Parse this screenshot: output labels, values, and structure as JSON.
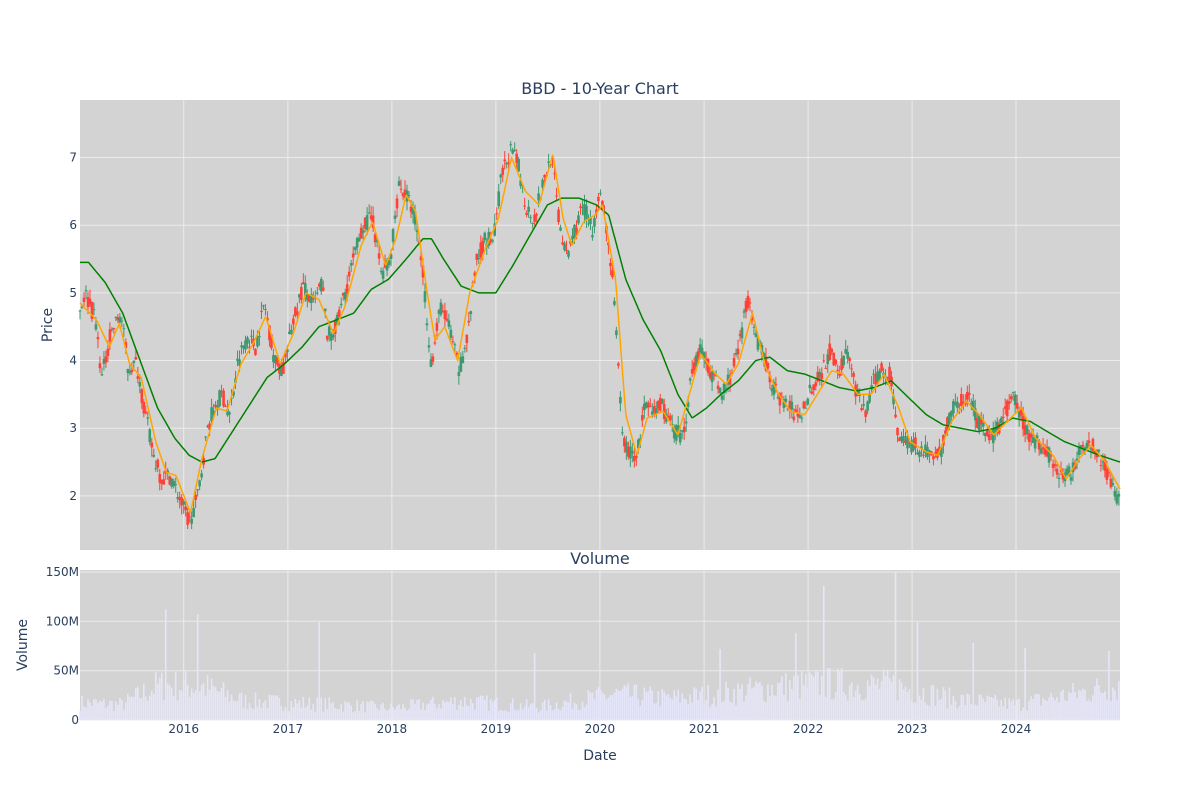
{
  "figure": {
    "background": "#ffffff",
    "plot_background": "#d3d3d3",
    "grid_color": "#ebebeb",
    "text_color": "#2a3f5f",
    "up_color": "#3d9970",
    "down_color": "#ff4136",
    "ma_fast_color": "#ffa500",
    "ma_slow_color": "#008000",
    "volume_color": "#e6e6fa"
  },
  "chart_data": [
    {
      "type": "candlestick",
      "title": "BBD - 10-Year Chart",
      "ylabel": "Price",
      "ylim": [
        1.2,
        7.85
      ],
      "yticks": [
        2,
        3,
        4,
        5,
        6,
        7
      ],
      "ytick_labels": [
        "2",
        "3",
        "4",
        "5",
        "6",
        "7"
      ],
      "xlim": [
        "2015-01-02",
        "2024-12-31"
      ],
      "grid": true,
      "price_anchors": [
        [
          "2015-01-02",
          4.75
        ],
        [
          "2015-01-20",
          5.0
        ],
        [
          "2015-02-25",
          4.6
        ],
        [
          "2015-03-20",
          3.75
        ],
        [
          "2015-04-20",
          4.4
        ],
        [
          "2015-05-25",
          4.7
        ],
        [
          "2015-06-20",
          3.9
        ],
        [
          "2015-07-20",
          3.95
        ],
        [
          "2015-08-15",
          3.3
        ],
        [
          "2015-09-20",
          2.55
        ],
        [
          "2015-10-15",
          2.25
        ],
        [
          "2015-11-15",
          2.3
        ],
        [
          "2015-12-10",
          2.05
        ],
        [
          "2016-01-20",
          1.6
        ],
        [
          "2016-02-20",
          2.0
        ],
        [
          "2016-03-25",
          3.0
        ],
        [
          "2016-04-20",
          3.35
        ],
        [
          "2016-05-15",
          3.5
        ],
        [
          "2016-06-10",
          3.2
        ],
        [
          "2016-07-10",
          4.0
        ],
        [
          "2016-08-10",
          4.35
        ],
        [
          "2016-09-10",
          4.2
        ],
        [
          "2016-10-10",
          4.85
        ],
        [
          "2016-11-15",
          4.0
        ],
        [
          "2016-12-15",
          3.85
        ],
        [
          "2017-01-20",
          4.6
        ],
        [
          "2017-02-25",
          5.1
        ],
        [
          "2017-04-01",
          4.8
        ],
        [
          "2017-05-01",
          5.15
        ],
        [
          "2017-05-20",
          4.35
        ],
        [
          "2017-06-20",
          4.5
        ],
        [
          "2017-07-20",
          5.0
        ],
        [
          "2017-08-20",
          5.5
        ],
        [
          "2017-09-20",
          6.0
        ],
        [
          "2017-10-25",
          6.1
        ],
        [
          "2017-11-25",
          5.3
        ],
        [
          "2017-12-25",
          5.45
        ],
        [
          "2018-01-25",
          6.6
        ],
        [
          "2018-02-25",
          6.4
        ],
        [
          "2018-03-25",
          6.1
        ],
        [
          "2018-04-20",
          5.3
        ],
        [
          "2018-05-20",
          3.9
        ],
        [
          "2018-06-20",
          4.8
        ],
        [
          "2018-07-20",
          4.5
        ],
        [
          "2018-08-25",
          3.85
        ],
        [
          "2018-09-25",
          4.4
        ],
        [
          "2018-10-25",
          5.5
        ],
        [
          "2018-11-25",
          5.8
        ],
        [
          "2018-12-25",
          5.8
        ],
        [
          "2019-01-20",
          6.7
        ],
        [
          "2019-02-20",
          7.1
        ],
        [
          "2019-03-20",
          6.9
        ],
        [
          "2019-04-15",
          6.3
        ],
        [
          "2019-05-15",
          6.1
        ],
        [
          "2019-06-15",
          6.6
        ],
        [
          "2019-07-15",
          7.05
        ],
        [
          "2019-08-10",
          6.1
        ],
        [
          "2019-09-05",
          5.5
        ],
        [
          "2019-10-05",
          5.95
        ],
        [
          "2019-11-05",
          6.3
        ],
        [
          "2019-12-05",
          5.9
        ],
        [
          "2019-12-28",
          6.5
        ],
        [
          "2020-01-20",
          6.1
        ],
        [
          "2020-02-15",
          5.2
        ],
        [
          "2020-03-20",
          2.9
        ],
        [
          "2020-04-10",
          2.65
        ],
        [
          "2020-05-10",
          2.6
        ],
        [
          "2020-06-05",
          3.3
        ],
        [
          "2020-07-05",
          3.2
        ],
        [
          "2020-08-05",
          3.35
        ],
        [
          "2020-09-10",
          3.0
        ],
        [
          "2020-10-20",
          2.85
        ],
        [
          "2020-11-20",
          3.9
        ],
        [
          "2020-12-20",
          4.15
        ],
        [
          "2021-01-25",
          3.85
        ],
        [
          "2021-03-01",
          3.5
        ],
        [
          "2021-04-01",
          3.75
        ],
        [
          "2021-05-01",
          4.1
        ],
        [
          "2021-06-01",
          4.95
        ],
        [
          "2021-07-01",
          4.3
        ],
        [
          "2021-08-01",
          4.05
        ],
        [
          "2021-09-01",
          3.6
        ],
        [
          "2021-10-01",
          3.4
        ],
        [
          "2021-11-01",
          3.3
        ],
        [
          "2021-12-01",
          3.1
        ],
        [
          "2022-01-10",
          3.6
        ],
        [
          "2022-02-10",
          3.75
        ],
        [
          "2022-03-20",
          4.15
        ],
        [
          "2022-04-20",
          3.85
        ],
        [
          "2022-05-20",
          4.15
        ],
        [
          "2022-06-20",
          3.5
        ],
        [
          "2022-07-20",
          3.2
        ],
        [
          "2022-08-20",
          3.7
        ],
        [
          "2022-09-20",
          3.9
        ],
        [
          "2022-10-20",
          3.75
        ],
        [
          "2022-11-10",
          2.95
        ],
        [
          "2022-12-10",
          2.8
        ],
        [
          "2023-01-10",
          2.75
        ],
        [
          "2023-02-10",
          2.65
        ],
        [
          "2023-03-15",
          2.6
        ],
        [
          "2023-04-15",
          2.7
        ],
        [
          "2023-05-15",
          3.2
        ],
        [
          "2023-06-15",
          3.4
        ],
        [
          "2023-07-20",
          3.45
        ],
        [
          "2023-08-20",
          3.1
        ],
        [
          "2023-09-20",
          2.9
        ],
        [
          "2023-10-20",
          2.9
        ],
        [
          "2023-11-20",
          3.2
        ],
        [
          "2023-12-25",
          3.45
        ],
        [
          "2024-01-25",
          3.1
        ],
        [
          "2024-02-20",
          2.85
        ],
        [
          "2024-03-20",
          2.8
        ],
        [
          "2024-04-20",
          2.65
        ],
        [
          "2024-05-20",
          2.45
        ],
        [
          "2024-06-20",
          2.25
        ],
        [
          "2024-07-15",
          2.35
        ],
        [
          "2024-08-15",
          2.8
        ],
        [
          "2024-09-15",
          2.75
        ],
        [
          "2024-10-15",
          2.65
        ],
        [
          "2024-11-15",
          2.35
        ],
        [
          "2024-12-15",
          2.05
        ],
        [
          "2024-12-31",
          1.9
        ]
      ],
      "ma_fast_anchors": [
        [
          "2015-01-02",
          4.85
        ],
        [
          "2015-03-01",
          4.6
        ],
        [
          "2015-04-15",
          4.2
        ],
        [
          "2015-05-20",
          4.55
        ],
        [
          "2015-06-25",
          3.95
        ],
        [
          "2015-08-05",
          3.75
        ],
        [
          "2015-09-25",
          2.8
        ],
        [
          "2015-11-01",
          2.35
        ],
        [
          "2015-12-05",
          2.3
        ],
        [
          "2016-01-25",
          1.75
        ],
        [
          "2016-03-05",
          2.55
        ],
        [
          "2016-04-25",
          3.3
        ],
        [
          "2016-06-01",
          3.25
        ],
        [
          "2016-07-20",
          3.95
        ],
        [
          "2016-09-01",
          4.25
        ],
        [
          "2016-10-15",
          4.65
        ],
        [
          "2016-12-05",
          3.95
        ],
        [
          "2017-01-20",
          4.4
        ],
        [
          "2017-03-05",
          5.0
        ],
        [
          "2017-04-20",
          4.9
        ],
        [
          "2017-06-10",
          4.4
        ],
        [
          "2017-07-20",
          4.8
        ],
        [
          "2017-09-15",
          5.7
        ],
        [
          "2017-10-25",
          6.05
        ],
        [
          "2017-12-10",
          5.4
        ],
        [
          "2018-01-15",
          5.8
        ],
        [
          "2018-02-20",
          6.45
        ],
        [
          "2018-03-25",
          6.2
        ],
        [
          "2018-05-05",
          5.0
        ],
        [
          "2018-06-01",
          4.3
        ],
        [
          "2018-07-05",
          4.5
        ],
        [
          "2018-08-20",
          4.0
        ],
        [
          "2018-10-01",
          5.0
        ],
        [
          "2018-11-25",
          5.65
        ],
        [
          "2019-01-10",
          6.1
        ],
        [
          "2019-02-25",
          7.0
        ],
        [
          "2019-04-15",
          6.5
        ],
        [
          "2019-06-01",
          6.3
        ],
        [
          "2019-07-20",
          7.05
        ],
        [
          "2019-08-25",
          6.1
        ],
        [
          "2019-09-25",
          5.7
        ],
        [
          "2019-11-05",
          6.05
        ],
        [
          "2019-12-15",
          6.15
        ],
        [
          "2020-01-10",
          6.3
        ],
        [
          "2020-02-25",
          5.2
        ],
        [
          "2020-04-01",
          3.2
        ],
        [
          "2020-05-10",
          2.6
        ],
        [
          "2020-06-15",
          3.15
        ],
        [
          "2020-08-10",
          3.25
        ],
        [
          "2020-10-01",
          2.9
        ],
        [
          "2020-11-10",
          3.5
        ],
        [
          "2020-12-20",
          4.1
        ],
        [
          "2021-02-10",
          3.8
        ],
        [
          "2021-03-20",
          3.65
        ],
        [
          "2021-05-01",
          3.95
        ],
        [
          "2021-06-20",
          4.7
        ],
        [
          "2021-08-05",
          3.9
        ],
        [
          "2021-09-20",
          3.5
        ],
        [
          "2021-11-01",
          3.25
        ],
        [
          "2021-12-20",
          3.2
        ],
        [
          "2022-02-10",
          3.55
        ],
        [
          "2022-03-25",
          3.85
        ],
        [
          "2022-05-05",
          3.8
        ],
        [
          "2022-06-25",
          3.5
        ],
        [
          "2022-08-10",
          3.5
        ],
        [
          "2022-09-25",
          3.8
        ],
        [
          "2022-11-15",
          3.3
        ],
        [
          "2022-12-25",
          2.8
        ],
        [
          "2023-02-20",
          2.65
        ],
        [
          "2023-04-01",
          2.6
        ],
        [
          "2023-05-20",
          3.1
        ],
        [
          "2023-07-10",
          3.4
        ],
        [
          "2023-08-25",
          3.2
        ],
        [
          "2023-10-15",
          2.9
        ],
        [
          "2023-12-01",
          3.1
        ],
        [
          "2024-01-20",
          3.3
        ],
        [
          "2024-03-10",
          2.85
        ],
        [
          "2024-05-10",
          2.6
        ],
        [
          "2024-06-25",
          2.25
        ],
        [
          "2024-08-10",
          2.55
        ],
        [
          "2024-09-20",
          2.75
        ],
        [
          "2024-11-10",
          2.5
        ],
        [
          "2024-12-31",
          2.1
        ]
      ],
      "ma_slow_anchors": [
        [
          "2015-01-02",
          5.45
        ],
        [
          "2015-02-01",
          5.45
        ],
        [
          "2015-04-01",
          5.15
        ],
        [
          "2015-06-01",
          4.7
        ],
        [
          "2015-08-01",
          4.0
        ],
        [
          "2015-10-01",
          3.3
        ],
        [
          "2015-12-01",
          2.85
        ],
        [
          "2016-01-20",
          2.6
        ],
        [
          "2016-03-05",
          2.5
        ],
        [
          "2016-04-20",
          2.55
        ],
        [
          "2016-06-20",
          2.95
        ],
        [
          "2016-08-20",
          3.35
        ],
        [
          "2016-10-20",
          3.75
        ],
        [
          "2016-12-20",
          3.95
        ],
        [
          "2017-02-20",
          4.2
        ],
        [
          "2017-04-20",
          4.5
        ],
        [
          "2017-06-20",
          4.6
        ],
        [
          "2017-08-20",
          4.7
        ],
        [
          "2017-10-20",
          5.05
        ],
        [
          "2017-12-20",
          5.2
        ],
        [
          "2018-02-20",
          5.5
        ],
        [
          "2018-04-20",
          5.8
        ],
        [
          "2018-05-20",
          5.8
        ],
        [
          "2018-07-01",
          5.5
        ],
        [
          "2018-09-01",
          5.1
        ],
        [
          "2018-11-01",
          5.0
        ],
        [
          "2019-01-01",
          5.0
        ],
        [
          "2019-03-01",
          5.4
        ],
        [
          "2019-05-01",
          5.85
        ],
        [
          "2019-07-01",
          6.3
        ],
        [
          "2019-08-20",
          6.4
        ],
        [
          "2019-10-20",
          6.4
        ],
        [
          "2019-12-20",
          6.3
        ],
        [
          "2020-02-01",
          6.15
        ],
        [
          "2020-04-01",
          5.2
        ],
        [
          "2020-06-01",
          4.6
        ],
        [
          "2020-08-01",
          4.15
        ],
        [
          "2020-10-01",
          3.5
        ],
        [
          "2020-11-20",
          3.15
        ],
        [
          "2021-01-10",
          3.3
        ],
        [
          "2021-03-01",
          3.5
        ],
        [
          "2021-05-01",
          3.7
        ],
        [
          "2021-07-01",
          4.0
        ],
        [
          "2021-08-20",
          4.05
        ],
        [
          "2021-10-20",
          3.85
        ],
        [
          "2021-12-20",
          3.8
        ],
        [
          "2022-02-20",
          3.7
        ],
        [
          "2022-04-20",
          3.6
        ],
        [
          "2022-06-20",
          3.55
        ],
        [
          "2022-08-20",
          3.6
        ],
        [
          "2022-10-20",
          3.7
        ],
        [
          "2022-12-20",
          3.45
        ],
        [
          "2023-02-20",
          3.2
        ],
        [
          "2023-04-20",
          3.05
        ],
        [
          "2023-06-20",
          3.0
        ],
        [
          "2023-08-20",
          2.95
        ],
        [
          "2023-10-20",
          3.0
        ],
        [
          "2023-12-20",
          3.15
        ],
        [
          "2024-02-20",
          3.1
        ],
        [
          "2024-04-20",
          2.95
        ],
        [
          "2024-06-20",
          2.8
        ],
        [
          "2024-08-20",
          2.7
        ],
        [
          "2024-10-20",
          2.6
        ],
        [
          "2024-12-31",
          2.5
        ]
      ]
    },
    {
      "type": "bar",
      "title": "Volume",
      "ylabel": "Volume",
      "xlabel": "Date",
      "ylim": [
        0,
        152000000
      ],
      "yticks": [
        0,
        50000000,
        100000000,
        150000000
      ],
      "ytick_labels": [
        "0",
        "50M",
        "100M",
        "150M"
      ],
      "xticks": [
        "2016-01-01",
        "2017-01-01",
        "2018-01-01",
        "2019-01-01",
        "2020-01-01",
        "2021-01-01",
        "2022-01-01",
        "2023-01-01",
        "2024-01-01"
      ],
      "xtick_labels": [
        "2016",
        "2017",
        "2018",
        "2019",
        "2020",
        "2021",
        "2022",
        "2023",
        "2024"
      ],
      "grid": true,
      "volume_baseline_anchors": [
        [
          "2015-01-02",
          20000000
        ],
        [
          "2015-06-01",
          18000000
        ],
        [
          "2015-10-01",
          40000000
        ],
        [
          "2016-03-01",
          40000000
        ],
        [
          "2016-08-01",
          22000000
        ],
        [
          "2017-06-01",
          18000000
        ],
        [
          "2018-01-01",
          14000000
        ],
        [
          "2018-09-01",
          22000000
        ],
        [
          "2019-06-01",
          15000000
        ],
        [
          "2020-03-01",
          30000000
        ],
        [
          "2020-09-01",
          25000000
        ],
        [
          "2021-03-01",
          30000000
        ],
        [
          "2021-09-01",
          38000000
        ],
        [
          "2022-03-01",
          42000000
        ],
        [
          "2022-11-01",
          40000000
        ],
        [
          "2023-06-01",
          24000000
        ],
        [
          "2024-01-01",
          18000000
        ],
        [
          "2024-12-31",
          40000000
        ]
      ],
      "volume_spikes": [
        [
          "2015-11-01",
          112000000
        ],
        [
          "2016-02-20",
          107000000
        ],
        [
          "2017-04-20",
          99000000
        ],
        [
          "2019-05-15",
          68000000
        ],
        [
          "2021-02-25",
          72000000
        ],
        [
          "2021-11-20",
          88000000
        ],
        [
          "2022-02-25",
          136000000
        ],
        [
          "2022-11-01",
          150000000
        ],
        [
          "2023-01-20",
          100000000
        ],
        [
          "2023-08-01",
          78000000
        ],
        [
          "2024-02-01",
          73000000
        ],
        [
          "2024-11-20",
          70000000
        ]
      ]
    }
  ]
}
